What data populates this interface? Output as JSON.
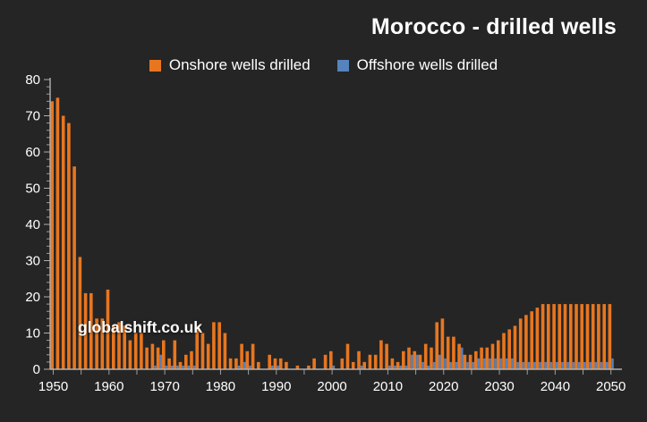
{
  "title": "Morocco - drilled wells",
  "watermark": "globalshift.co.uk",
  "legend": [
    {
      "label": "Onshore wells drilled",
      "color": "#e8761f"
    },
    {
      "label": "Offshore wells drilled",
      "color": "#5583bd"
    }
  ],
  "colors": {
    "background": "#252525",
    "onshore": "#e8761f",
    "offshore": "#5583bd",
    "axis_line": "#b0b0b0",
    "tick": "#9e9e9e",
    "label": "#ffffff"
  },
  "chart_data": {
    "type": "bar",
    "title": "Morocco - drilled wells",
    "xlabel": "",
    "ylabel": "",
    "ylim": [
      0,
      80
    ],
    "y_tick_major": 10,
    "y_tick_minor": 2,
    "x_tick_interval": 5,
    "x_label_interval": 10,
    "grid": false,
    "legend_position": "top",
    "x": [
      1950,
      1951,
      1952,
      1953,
      1954,
      1955,
      1956,
      1957,
      1958,
      1959,
      1960,
      1961,
      1962,
      1963,
      1964,
      1965,
      1966,
      1967,
      1968,
      1969,
      1970,
      1971,
      1972,
      1973,
      1974,
      1975,
      1976,
      1977,
      1978,
      1979,
      1980,
      1981,
      1982,
      1983,
      1984,
      1985,
      1986,
      1987,
      1988,
      1989,
      1990,
      1991,
      1992,
      1993,
      1994,
      1995,
      1996,
      1997,
      1998,
      1999,
      2000,
      2001,
      2002,
      2003,
      2004,
      2005,
      2006,
      2007,
      2008,
      2009,
      2010,
      2011,
      2012,
      2013,
      2014,
      2015,
      2016,
      2017,
      2018,
      2019,
      2020,
      2021,
      2022,
      2023,
      2024,
      2025,
      2026,
      2027,
      2028,
      2029,
      2030,
      2031,
      2032,
      2033,
      2034,
      2035,
      2036,
      2037,
      2038,
      2039,
      2040,
      2041,
      2042,
      2043,
      2044,
      2045,
      2046,
      2047,
      2048,
      2049,
      2050
    ],
    "series": [
      {
        "name": "Onshore wells drilled",
        "color": "#e8761f",
        "values": [
          74,
          75,
          70,
          68,
          56,
          31,
          21,
          21,
          14,
          14,
          22,
          12,
          13,
          12,
          8,
          10,
          10,
          6,
          7,
          6,
          8,
          3,
          8,
          2,
          4,
          5,
          12,
          10,
          7,
          13,
          13,
          10,
          3,
          3,
          7,
          5,
          7,
          2,
          0,
          4,
          3,
          3,
          2,
          0,
          1,
          0,
          1,
          3,
          0,
          4,
          5,
          0,
          3,
          7,
          2,
          5,
          2,
          4,
          4,
          8,
          7,
          3,
          2,
          5,
          6,
          5,
          4,
          7,
          6,
          13,
          14,
          9,
          9,
          7,
          4,
          4,
          5,
          6,
          6,
          7,
          8,
          10,
          11,
          12,
          14,
          15,
          16,
          17,
          18,
          18,
          18,
          18,
          18,
          18,
          18,
          18,
          18,
          18,
          18,
          18,
          18
        ]
      },
      {
        "name": "Offshore wells drilled",
        "color": "#5583bd",
        "values": [
          0,
          0,
          0,
          0,
          0,
          0,
          0,
          0,
          0,
          0,
          0,
          0,
          0,
          0,
          0,
          0,
          0,
          0,
          1,
          4,
          1,
          1,
          1,
          1,
          1,
          1,
          0,
          0,
          0,
          0,
          0,
          0,
          0,
          1,
          2,
          1,
          0,
          0,
          0,
          1,
          1,
          0,
          0,
          0,
          0,
          0,
          0,
          0,
          0,
          0,
          1,
          0,
          0,
          0,
          0,
          1,
          0,
          0,
          0,
          0,
          1,
          1,
          1,
          1,
          4,
          4,
          2,
          1,
          2,
          4,
          3,
          2,
          2,
          6,
          2,
          2,
          3,
          3,
          3,
          3,
          3,
          3,
          3,
          2,
          2,
          2,
          2,
          2,
          2,
          2,
          2,
          2,
          2,
          2,
          2,
          2,
          2,
          2,
          2,
          2,
          3
        ]
      }
    ]
  }
}
